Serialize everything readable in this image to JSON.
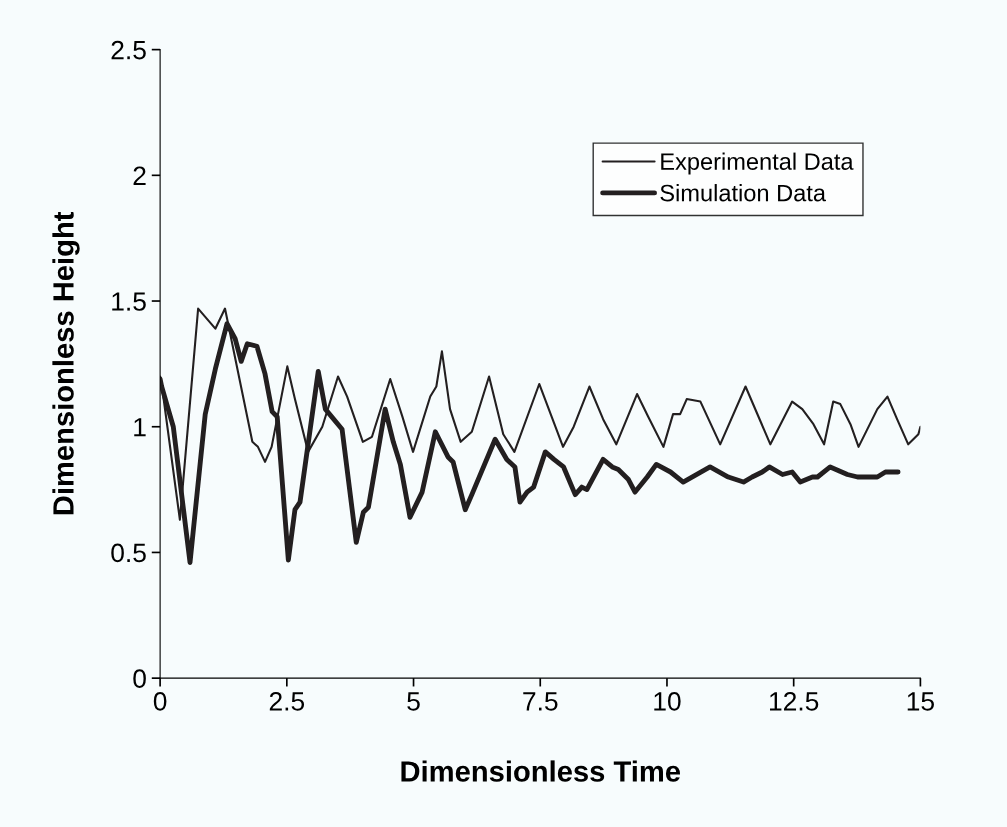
{
  "chart_data": {
    "type": "line",
    "xlabel": "Dimensionless Time",
    "ylabel": "Dimensionless Height",
    "xlim": [
      0,
      15
    ],
    "ylim": [
      0,
      2.5
    ],
    "xticks": [
      0,
      2.5,
      5,
      7.5,
      10,
      12.5,
      15
    ],
    "yticks": [
      0,
      0.5,
      1,
      1.5,
      2,
      2.5
    ],
    "grid": false,
    "legend": "top right",
    "marker": "none",
    "line_style": "solid",
    "series": [
      {
        "name": "Experimental Data",
        "color": "#231f20",
        "x": [
          0,
          0.03,
          0.39,
          0.75,
          1.09,
          1.28,
          1.82,
          1.93,
          2.07,
          2.2,
          2.51,
          2.66,
          2.92,
          3.2,
          3.51,
          3.69,
          4.0,
          4.18,
          4.54,
          4.78,
          4.99,
          5.33,
          5.45,
          5.56,
          5.72,
          5.93,
          6.15,
          6.49,
          6.77,
          6.99,
          7.48,
          7.95,
          8.16,
          8.47,
          8.74,
          9.0,
          9.41,
          9.63,
          9.93,
          10.12,
          10.26,
          10.39,
          10.66,
          11.05,
          11.55,
          12.04,
          12.47,
          12.67,
          12.89,
          13.1,
          13.28,
          13.42,
          13.62,
          13.78,
          14.15,
          14.35,
          14.54,
          14.76,
          14.96,
          15
        ],
        "values": [
          1.2,
          1.17,
          0.63,
          1.47,
          1.39,
          1.47,
          0.94,
          0.92,
          0.86,
          0.92,
          1.24,
          1.11,
          0.9,
          1.0,
          1.2,
          1.12,
          0.94,
          0.96,
          1.19,
          1.04,
          0.9,
          1.12,
          1.16,
          1.3,
          1.07,
          0.94,
          0.98,
          1.2,
          0.97,
          0.9,
          1.17,
          0.92,
          1.0,
          1.16,
          1.03,
          0.93,
          1.13,
          1.04,
          0.92,
          1.05,
          1.05,
          1.11,
          1.1,
          0.93,
          1.16,
          0.93,
          1.1,
          1.07,
          1.01,
          0.93,
          1.1,
          1.09,
          1.01,
          0.92,
          1.07,
          1.12,
          1.03,
          0.93,
          0.97,
          1.0
        ]
      },
      {
        "name": "Simulation Data",
        "color": "#231f20",
        "x": [
          0,
          0.03,
          0.26,
          0.59,
          0.89,
          1.09,
          1.32,
          1.48,
          1.6,
          1.72,
          1.91,
          2.07,
          2.21,
          2.31,
          2.53,
          2.66,
          2.76,
          3.12,
          3.26,
          3.59,
          3.87,
          4.01,
          4.11,
          4.44,
          4.6,
          4.74,
          4.93,
          5.17,
          5.43,
          5.68,
          5.78,
          6.02,
          6.15,
          6.61,
          6.84,
          7.0,
          7.1,
          7.24,
          7.37,
          7.6,
          7.77,
          7.96,
          8.19,
          8.32,
          8.42,
          8.74,
          8.92,
          9.04,
          9.24,
          9.37,
          9.61,
          9.79,
          10.07,
          10.32,
          10.85,
          11.21,
          11.51,
          11.68,
          11.88,
          12.02,
          12.28,
          12.47,
          12.63,
          12.87,
          12.97,
          13.22,
          13.56,
          13.76,
          14.15,
          14.31,
          14.56
        ],
        "values": [
          1.19,
          1.16,
          1.0,
          0.46,
          1.05,
          1.23,
          1.41,
          1.35,
          1.26,
          1.33,
          1.32,
          1.21,
          1.06,
          1.04,
          0.47,
          0.67,
          0.7,
          1.22,
          1.07,
          0.99,
          0.54,
          0.66,
          0.68,
          1.07,
          0.94,
          0.85,
          0.64,
          0.74,
          0.98,
          0.88,
          0.86,
          0.67,
          0.73,
          0.95,
          0.87,
          0.84,
          0.7,
          0.74,
          0.76,
          0.9,
          0.87,
          0.84,
          0.73,
          0.76,
          0.75,
          0.87,
          0.84,
          0.83,
          0.79,
          0.74,
          0.8,
          0.85,
          0.82,
          0.78,
          0.84,
          0.8,
          0.78,
          0.8,
          0.82,
          0.84,
          0.81,
          0.82,
          0.78,
          0.8,
          0.8,
          0.84,
          0.81,
          0.8,
          0.8,
          0.82,
          0.82
        ]
      }
    ]
  }
}
